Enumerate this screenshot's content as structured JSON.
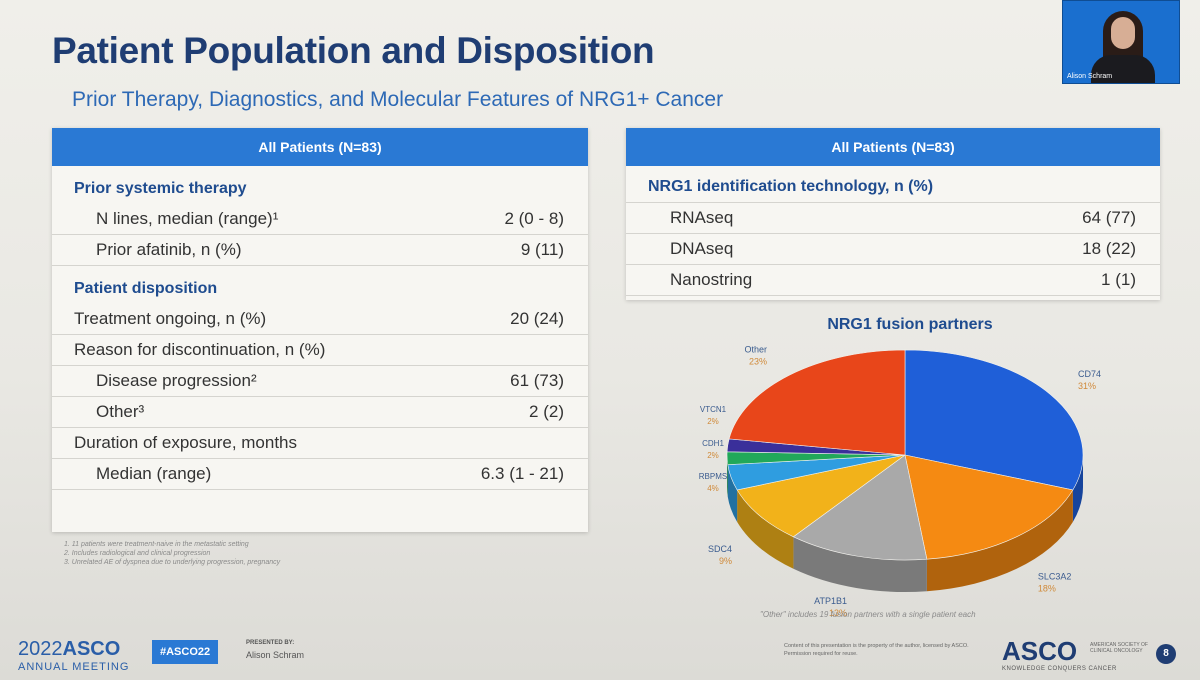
{
  "slide": {
    "title": "Patient Population and Disposition",
    "subtitle": "Prior Therapy, Diagnostics, and Molecular Features of NRG1+ Cancer"
  },
  "webcam": {
    "caption": "Alison Schram"
  },
  "left_table": {
    "header": "All Patients (N=83)",
    "rows": [
      {
        "label": "Prior systemic therapy",
        "value": "",
        "type": "section"
      },
      {
        "label": "N lines, median (range)¹",
        "value": "2 (0 - 8)",
        "type": "ind1"
      },
      {
        "label": "Prior afatinib, n (%)",
        "value": "9 (11)",
        "type": "ind1"
      },
      {
        "label": "Patient disposition",
        "value": "",
        "type": "section"
      },
      {
        "label": "Treatment ongoing, n (%)",
        "value": "20 (24)",
        "type": "ind0"
      },
      {
        "label": "Reason for discontinuation, n (%)",
        "value": "",
        "type": "ind0"
      },
      {
        "label": "Disease progression²",
        "value": "61 (73)",
        "type": "ind1"
      },
      {
        "label": "Other³",
        "value": "2 (2)",
        "type": "ind1"
      },
      {
        "label": "Duration of exposure, months",
        "value": "",
        "type": "ind0"
      },
      {
        "label": "Median (range)",
        "value": "6.3 (1 - 21)",
        "type": "ind1"
      }
    ]
  },
  "footnotes": [
    "1. 11 patients were treatment-naive in the metastatic setting",
    "2. Includes radiological and clinical progression",
    "3. Unrelated AE of dyspnea due to underlying progression, pregnancy"
  ],
  "right_table": {
    "header": "All Patients (N=83)",
    "section": "NRG1 identification technology, n (%)",
    "rows": [
      {
        "label": "RNAseq",
        "value": "64 (77)"
      },
      {
        "label": "DNAseq",
        "value": "18 (22)"
      },
      {
        "label": "Nanostring",
        "value": "1 (1)"
      }
    ]
  },
  "chart_data": {
    "type": "pie",
    "title": "NRG1 fusion partners",
    "slices": [
      {
        "label": "CD74",
        "percent_label": "31%",
        "value": 31,
        "color": "#1f5fd8"
      },
      {
        "label": "SLC3A2",
        "percent_label": "18%",
        "value": 18,
        "color": "#f58a12"
      },
      {
        "label": "ATP1B1",
        "percent_label": "13%",
        "value": 13,
        "color": "#a9a9a9"
      },
      {
        "label": "SDC4",
        "percent_label": "9%",
        "value": 9,
        "color": "#f2b21a"
      },
      {
        "label": "RBPMS",
        "percent_label": "4%",
        "value": 4,
        "color": "#2f9de0"
      },
      {
        "label": "CDH1",
        "percent_label": "2%",
        "value": 2,
        "color": "#21a85a"
      },
      {
        "label": "VTCN1",
        "percent_label": "2%",
        "value": 2,
        "color": "#3a2f9a"
      },
      {
        "label": "Other",
        "percent_label": "23%",
        "value": 23,
        "color": "#e8461a"
      }
    ],
    "note": "\"Other\" includes 19 fusion partners with a single patient each"
  },
  "footer": {
    "year": "2022",
    "brand": "ASCO",
    "meeting": "ANNUAL MEETING",
    "hashtag": "#ASCO22",
    "presented_by": "PRESENTED BY:",
    "presenter": "Alison Schram",
    "copyright": "Content of this presentation is the property of the author, licensed by ASCO. Permission required for reuse.",
    "logo": "ASCO",
    "logo_sub": "AMERICAN SOCIETY OF CLINICAL ONCOLOGY",
    "tagline": "KNOWLEDGE CONQUERS CANCER",
    "page": "8"
  }
}
